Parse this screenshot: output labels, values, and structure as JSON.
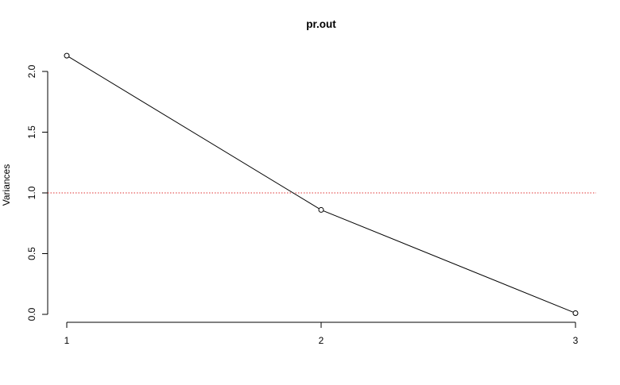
{
  "chart_data": {
    "type": "line",
    "title": "pr.out",
    "xlabel": "",
    "ylabel": "Variances",
    "x": [
      1,
      2,
      3
    ],
    "series": [
      {
        "values": [
          2.13,
          0.86,
          0.01
        ]
      }
    ],
    "xlim": [
      1,
      3
    ],
    "ylim": [
      0,
      2.0
    ],
    "x_ticks": [
      "1",
      "2",
      "3"
    ],
    "y_ticks": [
      "0.0",
      "0.5",
      "1.0",
      "1.5",
      "2.0"
    ],
    "reference_line": {
      "y": 1.0,
      "color": "#e03030",
      "style": "dotted"
    },
    "line_color": "#000000",
    "grid": false,
    "legend": "none"
  }
}
